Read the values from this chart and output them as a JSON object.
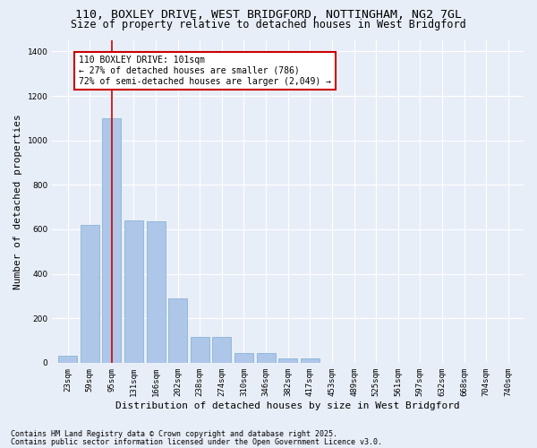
{
  "title_line1": "110, BOXLEY DRIVE, WEST BRIDGFORD, NOTTINGHAM, NG2 7GL",
  "title_line2": "Size of property relative to detached houses in West Bridgford",
  "xlabel": "Distribution of detached houses by size in West Bridgford",
  "ylabel": "Number of detached properties",
  "categories": [
    "23sqm",
    "59sqm",
    "95sqm",
    "131sqm",
    "166sqm",
    "202sqm",
    "238sqm",
    "274sqm",
    "310sqm",
    "346sqm",
    "382sqm",
    "417sqm",
    "453sqm",
    "489sqm",
    "525sqm",
    "561sqm",
    "597sqm",
    "632sqm",
    "668sqm",
    "704sqm",
    "740sqm"
  ],
  "values": [
    30,
    620,
    1100,
    640,
    635,
    290,
    115,
    115,
    45,
    45,
    20,
    20,
    0,
    0,
    0,
    0,
    0,
    0,
    0,
    0,
    0
  ],
  "bar_color": "#aec6e8",
  "bar_edge_color": "#7aafd0",
  "vline_x": 2,
  "vline_color": "#cc0000",
  "annotation_text": "110 BOXLEY DRIVE: 101sqm\n← 27% of detached houses are smaller (786)\n72% of semi-detached houses are larger (2,049) →",
  "annotation_box_color": "#ffffff",
  "annotation_box_edge_color": "#cc0000",
  "ylim": [
    0,
    1450
  ],
  "yticks": [
    0,
    200,
    400,
    600,
    800,
    1000,
    1200,
    1400
  ],
  "bg_color": "#e8eef8",
  "footer_line1": "Contains HM Land Registry data © Crown copyright and database right 2025.",
  "footer_line2": "Contains public sector information licensed under the Open Government Licence v3.0.",
  "title_fontsize": 9.5,
  "subtitle_fontsize": 8.5,
  "axis_label_fontsize": 8,
  "tick_fontsize": 6.5,
  "annotation_fontsize": 7,
  "footer_fontsize": 6
}
